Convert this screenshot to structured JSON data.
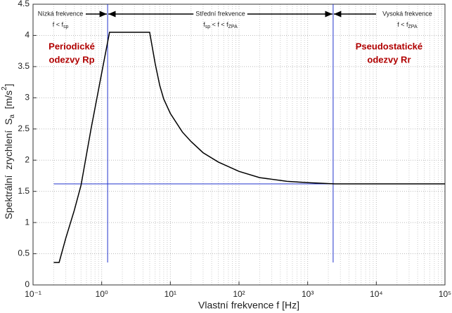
{
  "chart_data": {
    "type": "line",
    "x_label": "Vlastní frekvence f [Hz]",
    "y_label": [
      {
        "text": "Spektrální  zrychlení  S"
      },
      {
        "text": "a",
        "sub": true
      },
      {
        "text": "  [m/s"
      },
      {
        "text": "2",
        "sup": true
      },
      {
        "text": "]"
      }
    ],
    "xscale": "log",
    "xlim": [
      0.1,
      100000
    ],
    "xticks": [
      {
        "value": 0.1,
        "label": "10⁻¹"
      },
      {
        "value": 1,
        "label": "10⁰"
      },
      {
        "value": 10,
        "label": "10¹"
      },
      {
        "value": 100,
        "label": "10²"
      },
      {
        "value": 1000,
        "label": "10³"
      },
      {
        "value": 10000,
        "label": "10⁴"
      },
      {
        "value": 100000,
        "label": "10⁵"
      }
    ],
    "ylim": [
      0,
      4.5
    ],
    "yticks": [
      0,
      0.5,
      1,
      1.5,
      2,
      2.5,
      3,
      3.5,
      4,
      4.5
    ],
    "grid": true,
    "series": [
      {
        "color": "#000000",
        "x": [
          0.2,
          0.24,
          0.3,
          0.4,
          0.5,
          0.7,
          1.0,
          1.3,
          5,
          6,
          7,
          8,
          10,
          15,
          20,
          30,
          50,
          100,
          200,
          500,
          1000,
          2500,
          100000
        ],
        "values": [
          0.36,
          0.36,
          0.75,
          1.2,
          1.6,
          2.5,
          3.4,
          4.05,
          4.05,
          3.55,
          3.2,
          2.98,
          2.75,
          2.45,
          2.3,
          2.12,
          1.97,
          1.82,
          1.72,
          1.66,
          1.64,
          1.62,
          1.62
        ]
      }
    ],
    "hline": {
      "value": 1.62,
      "from": 0.2,
      "color": "#2233cc"
    },
    "vlines": {
      "x": [
        1.22,
        2350
      ],
      "from": 0.36,
      "color": "#2233cc"
    },
    "annotations": [
      {
        "title": "Nízká frekvence",
        "parts": [
          {
            "text": "f < f"
          },
          {
            "text": "sp",
            "sub": true
          }
        ]
      },
      {
        "title": "Střední frekvence",
        "parts": [
          {
            "text": "f"
          },
          {
            "text": "sp",
            "sub": true
          },
          {
            "text": " < f < f"
          },
          {
            "text": "ZPA",
            "sub": true
          }
        ]
      },
      {
        "title": "Vysoká frekvence",
        "parts": [
          {
            "text": "f < f"
          },
          {
            "text": "ZPA",
            "sub": true
          }
        ]
      }
    ],
    "region_labels": [
      [
        "Periodické",
        "odezvy Rp"
      ],
      [
        "Pseudostatické",
        "odezvy Rr"
      ]
    ]
  }
}
